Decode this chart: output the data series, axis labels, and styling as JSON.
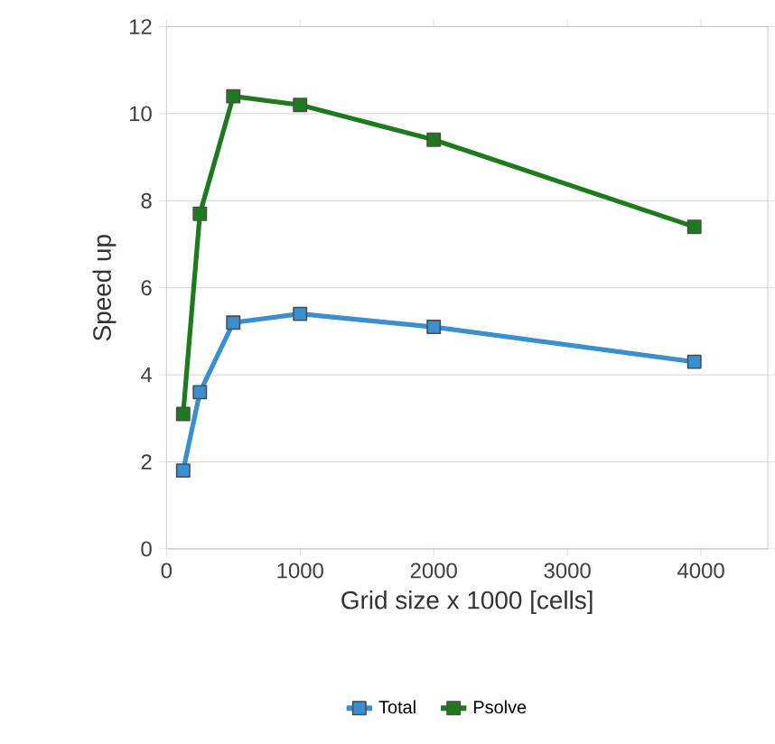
{
  "chart_data": {
    "type": "line",
    "xlabel": "Grid size x 1000 [cells]",
    "ylabel": "Speed up",
    "x": [
      125,
      250,
      500,
      1000,
      2000,
      3950
    ],
    "series": [
      {
        "name": "Total",
        "color": "#3a8fd0",
        "values": [
          1.8,
          3.6,
          5.2,
          5.4,
          5.1,
          4.3
        ]
      },
      {
        "name": "Psolve",
        "color": "#1e7a1e",
        "values": [
          3.1,
          7.7,
          10.4,
          10.2,
          9.4,
          7.4
        ]
      }
    ],
    "xlim": [
      0,
      4500
    ],
    "xticks": [
      0,
      1000,
      2000,
      3000,
      4000
    ],
    "ylim": [
      0,
      12
    ],
    "yticks": [
      0,
      2,
      4,
      6,
      8,
      10,
      12
    ],
    "grid": "y",
    "legend": "bottom",
    "marker": "square",
    "line_style": "solid"
  }
}
